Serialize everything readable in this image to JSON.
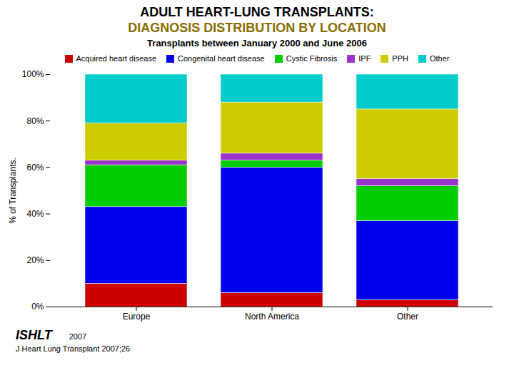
{
  "chart_data": {
    "type": "bar",
    "title": "ADULT HEART-LUNG TRANSPLANTS:\nDIAGNOSIS DISTRIBUTION BY LOCATION",
    "subtitle": "Transplants between January 2000 and June 2006",
    "ylabel": "% of Transplants.",
    "categories": [
      "Europe",
      "North America",
      "Other"
    ],
    "series": [
      {
        "name": "Acquired heart disease",
        "color": "#cc0000",
        "values": [
          10,
          6,
          3
        ]
      },
      {
        "name": "Congenital heart disease",
        "color": "#0000ee",
        "values": [
          33,
          54,
          34
        ]
      },
      {
        "name": "Cystic Fibrosis",
        "color": "#00cc00",
        "values": [
          18,
          3,
          15
        ]
      },
      {
        "name": "IPF",
        "color": "#9933cc",
        "values": [
          2,
          3,
          3
        ]
      },
      {
        "name": "PPH",
        "color": "#cccc00",
        "values": [
          16,
          22,
          30
        ]
      },
      {
        "name": "Other",
        "color": "#00cccc",
        "values": [
          21,
          12,
          15
        ]
      }
    ],
    "stacked": true,
    "ylim": [
      0,
      100
    ],
    "yticks": [
      {
        "value": 0,
        "label": "0%"
      },
      {
        "value": 20,
        "label": "20%"
      },
      {
        "value": 40,
        "label": "40%"
      },
      {
        "value": 60,
        "label": "60%"
      },
      {
        "value": 80,
        "label": "80%"
      },
      {
        "value": 100,
        "label": "100%"
      }
    ],
    "grid": false,
    "legend": "top",
    "annotations": [
      "ISHLT",
      "2007",
      "J Heart Lung Transplant 2007;26"
    ]
  }
}
